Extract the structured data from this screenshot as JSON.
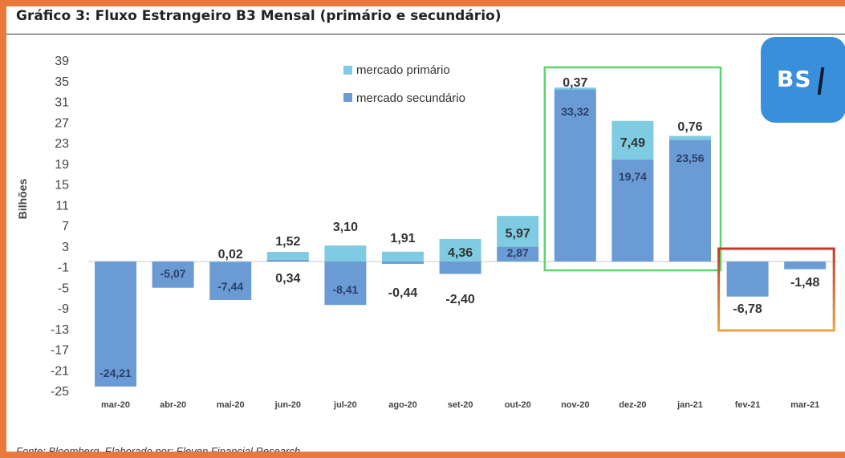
{
  "title": "Gráfico 3: Fluxo Estrangeiro B3 Mensal (primário e secundário)",
  "source_note": "Fonte: Bloomberg. Elaborado por: Eleven Financial Research",
  "logo_text": "BS",
  "colors": {
    "primario": "#7ecbe2",
    "secundario": "#6a9bd4",
    "highlight_green": "#5fd46a",
    "highlight_red": "#c0392b",
    "highlight_orange": "#e8a33c",
    "logo_bg": "#3a8fdb"
  },
  "chart_data": {
    "type": "bar",
    "stacked": true,
    "title": "Gráfico 3: Fluxo Estrangeiro B3 Mensal (primário e secundário)",
    "ylabel": "Bilhões",
    "xlabel": "",
    "ylim": [
      -25,
      39
    ],
    "yticks": [
      "39",
      "35",
      "31",
      "27",
      "23",
      "19",
      "15",
      "11",
      "7",
      "3",
      "-1",
      "-5",
      "-9",
      "-13",
      "-17",
      "-21",
      "-25"
    ],
    "categories": [
      "mar-20",
      "abr-20",
      "mai-20",
      "jun-20",
      "jul-20",
      "ago-20",
      "set-20",
      "out-20",
      "nov-20",
      "dez-20",
      "jan-21",
      "fev-21",
      "mar-21"
    ],
    "legend_position": "top-center",
    "series": [
      {
        "name": "mercado primário",
        "values": [
          0,
          0,
          0.02,
          1.52,
          3.1,
          1.91,
          4.36,
          5.97,
          0.37,
          7.49,
          0.76,
          0,
          0
        ],
        "labels": [
          "",
          "",
          "0,02",
          "1,52",
          "3,10",
          "1,91",
          "4,36",
          "5,97",
          "0,37",
          "7,49",
          "0,76",
          "",
          ""
        ]
      },
      {
        "name": "mercado secundário",
        "values": [
          -24.21,
          -5.07,
          -7.44,
          0.34,
          -8.41,
          -0.44,
          -2.4,
          2.87,
          33.32,
          19.74,
          23.56,
          -6.78,
          -1.48
        ],
        "labels": [
          "-24,21",
          "-5,07",
          "-7,44",
          "0,34",
          "-8,41",
          "-0,44",
          "-2,40",
          "2,87",
          "33,32",
          "19,74",
          "23,56",
          "-6,78",
          "-1,48"
        ]
      }
    ],
    "highlight_groups": [
      {
        "categories": [
          "nov-20",
          "dez-20",
          "jan-21"
        ],
        "color": "green"
      },
      {
        "categories": [
          "fev-21",
          "mar-21"
        ],
        "color": "red-orange"
      }
    ]
  }
}
